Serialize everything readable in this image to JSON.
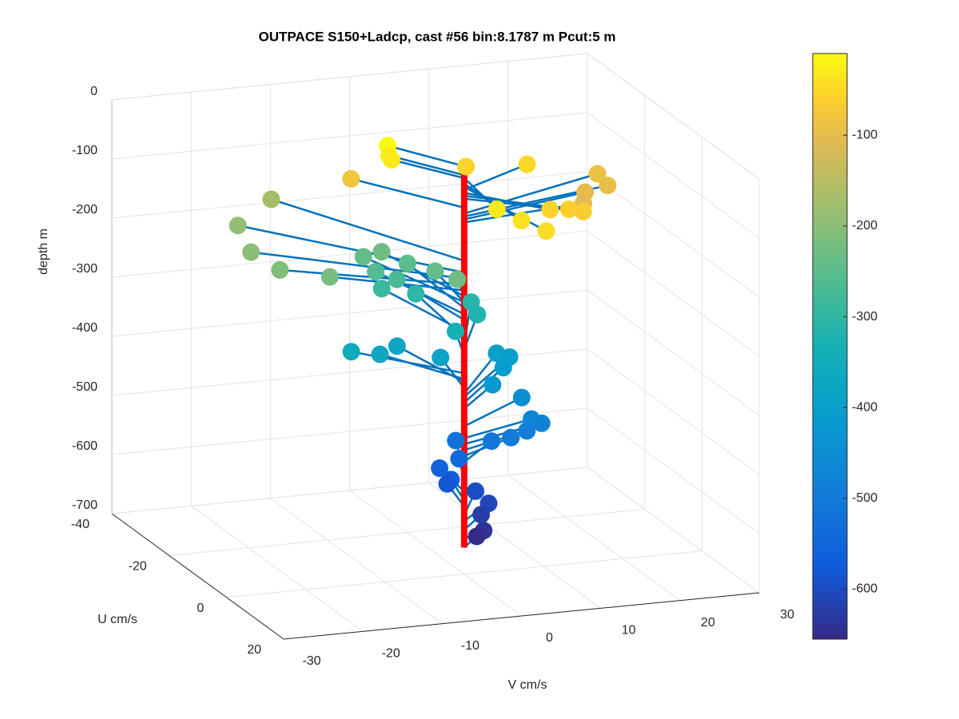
{
  "chart_data": {
    "type": "scatter3d",
    "title": "OUTPACE S150+Ladcp, cast #56 bin:8.1787 m  Pcut:5 m",
    "xlabel": "V cm/s",
    "ylabel": "U cm/s",
    "zlabel": "depth m",
    "vlim": [
      -30,
      30
    ],
    "vticks": [
      -30,
      -20,
      -10,
      0,
      10,
      20,
      30
    ],
    "ulim": [
      -40,
      20
    ],
    "uticks": [
      -40,
      -20,
      0,
      20
    ],
    "zlim": [
      -700,
      0
    ],
    "zticks": [
      -700,
      -600,
      -500,
      -400,
      -300,
      -200,
      -100,
      0
    ],
    "grid": true,
    "colormap": "parula",
    "clim": [
      -655,
      -10
    ],
    "cticks": [
      -600,
      -500,
      -400,
      -300,
      -200,
      -100
    ],
    "line_color": "#0072bd",
    "profile_color": "#ff0000",
    "depth": [
      -10,
      -25,
      -30,
      -50,
      -55,
      -80,
      -90,
      -95,
      -100,
      -105,
      -30,
      -40,
      -45,
      -55,
      -60,
      -65,
      -170,
      -190,
      -200,
      -210,
      -220,
      -240,
      -230,
      -250,
      -260,
      -270,
      -230,
      -240,
      -290,
      -300,
      -310,
      -320,
      -330,
      -360,
      -370,
      -375,
      -385,
      -395,
      -400,
      -410,
      -420,
      -450,
      -470,
      -480,
      -490,
      -500,
      -510,
      -520,
      -540,
      -560,
      -575,
      -585,
      -600,
      -610,
      -625,
      -640,
      -655
    ],
    "u": [
      -11.8,
      -11.3,
      -10.7,
      -8.2,
      -11,
      -16.8,
      -11.3,
      -7.2,
      -6.5,
      -3.2,
      14.5,
      17.8,
      22,
      10.6,
      10,
      10.3,
      -33.9,
      -29.2,
      -19.9,
      -13.7,
      -11.2,
      -23.3,
      -22.2,
      -21.2,
      -21.5,
      -19.9,
      -7.4,
      -14.3,
      -21.6,
      -20.5,
      -17.2,
      -14.2,
      -10.5,
      -13.7,
      -13.9,
      -17.9,
      -13.8,
      -15.8,
      -14.9,
      -13.2,
      -8.9,
      -9.8,
      -5.3,
      -5.6,
      -5.5,
      -5.8,
      -7.6,
      -11.8,
      -9,
      -10.8,
      -9.3,
      -10.1,
      -9.6,
      -6.4,
      -5.7,
      -2.6,
      -4.2
    ],
    "v": [
      -5.4,
      -5.4,
      -5.3,
      10.9,
      4.2,
      -8.2,
      20.9,
      20.7,
      17.6,
      16.2,
      -1.1,
      0.8,
      2.4,
      7,
      9.6,
      11.3,
      -12.1,
      -18,
      -19.7,
      -18.3,
      -12.9,
      -4.3,
      -2.4,
      0.5,
      -3.4,
      -1.3,
      1.8,
      1.5,
      -2.6,
      1.3,
      7.1,
      6.8,
      2.7,
      -9.3,
      -5.6,
      -2,
      2,
      9.8,
      11.1,
      9.7,
      6.8,
      10.8,
      10.4,
      11.8,
      9.9,
      8,
      6.2,
      3.2,
      2.6,
      0.8,
      1.7,
      1.5,
      4.9,
      5.4,
      4.2,
      3.4,
      3.1
    ]
  }
}
